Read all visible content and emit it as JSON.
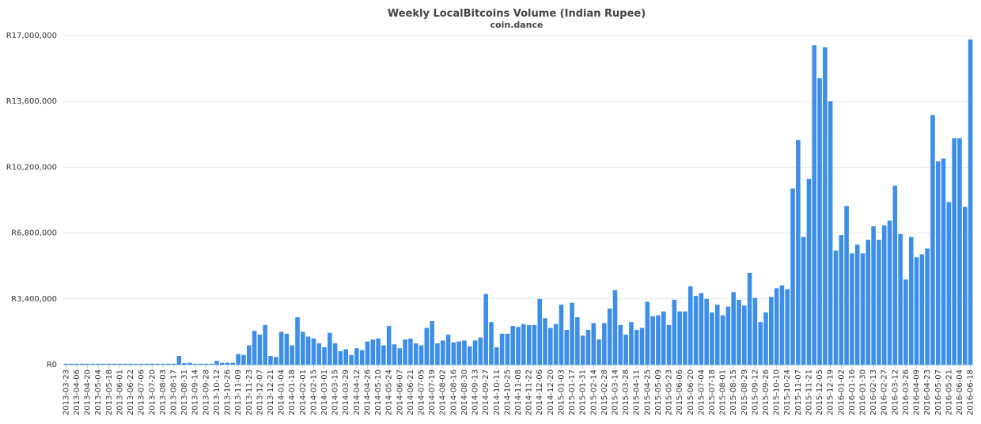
{
  "chart_data": {
    "type": "bar",
    "title": "Weekly LocalBitcoins Volume (Indian Rupee)",
    "subtitle": "coin.dance",
    "color": "#3d8ee8",
    "grid": true,
    "categories": [
      "2013-03-23",
      null,
      "2013-04-06",
      null,
      "2013-04-20",
      null,
      "2013-05-04",
      null,
      "2013-05-18",
      null,
      "2013-06-01",
      null,
      "2013-06-22",
      null,
      "2013-07-06",
      null,
      "2013-07-20",
      null,
      "2013-08-03",
      null,
      "2013-08-17",
      null,
      "2013-08-31",
      null,
      "2013-09-14",
      null,
      "2013-09-28",
      null,
      "2013-10-12",
      null,
      "2013-10-26",
      null,
      "2013-11-09",
      null,
      "2013-11-23",
      null,
      "2013-12-07",
      null,
      "2013-12-21",
      null,
      "2014-01-04",
      null,
      "2014-01-18",
      null,
      "2014-02-01",
      null,
      "2014-02-15",
      null,
      "2014-03-01",
      null,
      "2014-03-15",
      null,
      "2014-03-29",
      null,
      "2014-04-12",
      null,
      "2014-04-26",
      null,
      "2014-05-10",
      null,
      "2014-05-24",
      null,
      "2014-06-07",
      null,
      "2014-06-21",
      null,
      "2014-07-05",
      null,
      "2014-07-19",
      null,
      "2014-08-02",
      null,
      "2014-08-16",
      null,
      "2014-08-30",
      null,
      "2014-09-13",
      null,
      "2014-09-27",
      null,
      "2014-10-11",
      null,
      "2014-10-25",
      null,
      "2014-11-08",
      null,
      "2014-11-22",
      null,
      "2014-12-06",
      null,
      "2014-12-20",
      null,
      "2015-01-03",
      null,
      "2015-01-17",
      null,
      "2015-01-31",
      null,
      "2015-02-14",
      null,
      "2015-02-28",
      null,
      "2015-03-14",
      null,
      "2015-03-28",
      null,
      "2015-04-11",
      null,
      "2015-04-25",
      null,
      "2015-05-09",
      null,
      "2015-05-23",
      null,
      "2015-06-06",
      null,
      "2015-06-20",
      null,
      "2015-07-04",
      null,
      "2015-07-18",
      null,
      "2015-08-01",
      null,
      "2015-08-15",
      null,
      "2015-08-29",
      null,
      "2015-09-12",
      null,
      "2015-09-26",
      null,
      "2015-10-10",
      null,
      "2015-10-24",
      null,
      "2015-11-07",
      null,
      "2015-11-21",
      null,
      "2015-12-05",
      null,
      "2015-12-19",
      null,
      "2016-01-02",
      null,
      "2016-01-16",
      null,
      "2016-01-30",
      null,
      "2016-02-13",
      null,
      "2016-02-27",
      null,
      "2016-03-12",
      null,
      "2016-03-26",
      null,
      "2016-04-09",
      null,
      "2016-04-23",
      null,
      "2016-05-07",
      null,
      "2016-05-21",
      null,
      "2016-06-04",
      null,
      "2016-06-18"
    ],
    "values": [
      50000,
      50000,
      50000,
      50000,
      50000,
      50000,
      50000,
      50000,
      50000,
      50000,
      50000,
      50000,
      50000,
      50000,
      50000,
      50000,
      50000,
      50000,
      50000,
      50000,
      50000,
      450000,
      80000,
      100000,
      50000,
      50000,
      50000,
      50000,
      200000,
      100000,
      100000,
      100000,
      550000,
      500000,
      1000000,
      1750000,
      1550000,
      2050000,
      450000,
      400000,
      1700000,
      1600000,
      1000000,
      2450000,
      1700000,
      1450000,
      1350000,
      1100000,
      900000,
      1650000,
      1100000,
      700000,
      800000,
      500000,
      850000,
      750000,
      1200000,
      1300000,
      1350000,
      1000000,
      2000000,
      1050000,
      850000,
      1300000,
      1350000,
      1100000,
      1000000,
      1900000,
      2250000,
      1100000,
      1250000,
      1550000,
      1150000,
      1200000,
      1250000,
      950000,
      1250000,
      1400000,
      3650000,
      2200000,
      900000,
      1600000,
      1600000,
      2000000,
      1950000,
      2100000,
      2050000,
      2050000,
      3400000,
      2400000,
      1900000,
      2100000,
      3100000,
      1800000,
      3200000,
      2450000,
      1500000,
      1800000,
      2150000,
      1300000,
      2150000,
      2900000,
      3850000,
      2050000,
      1550000,
      2200000,
      1800000,
      1900000,
      3250000,
      2500000,
      2550000,
      2750000,
      2050000,
      3350000,
      2750000,
      2750000,
      4050000,
      3550000,
      3700000,
      3400000,
      2700000,
      3100000,
      2550000,
      3000000,
      3750000,
      3350000,
      3050000,
      4750000,
      3450000,
      2200000,
      2700000,
      3500000,
      3950000,
      4100000,
      3900000,
      9100000,
      11600000,
      6600000,
      9600000,
      16500000,
      14800000,
      16400000,
      13600000,
      5900000,
      6700000,
      8200000,
      5750000,
      6200000,
      5750000,
      6450000,
      7150000,
      6450000,
      7200000,
      7450000,
      9250000,
      6750000,
      4400000,
      6600000,
      5550000,
      5700000,
      6000000,
      12900000,
      10500000,
      10650000,
      8400000,
      11700000,
      11700000,
      8150000,
      16800000
    ],
    "ylim": [
      0,
      17000000
    ],
    "yticks": [
      {
        "value": 0,
        "label": "R0"
      },
      {
        "value": 3400000,
        "label": "R3,400,000"
      },
      {
        "value": 6800000,
        "label": "R6,800,000"
      },
      {
        "value": 10200000,
        "label": "R10,200,000"
      },
      {
        "value": 13600000,
        "label": "R13,600,000"
      },
      {
        "value": 17000000,
        "label": "R17,000,000"
      }
    ]
  }
}
